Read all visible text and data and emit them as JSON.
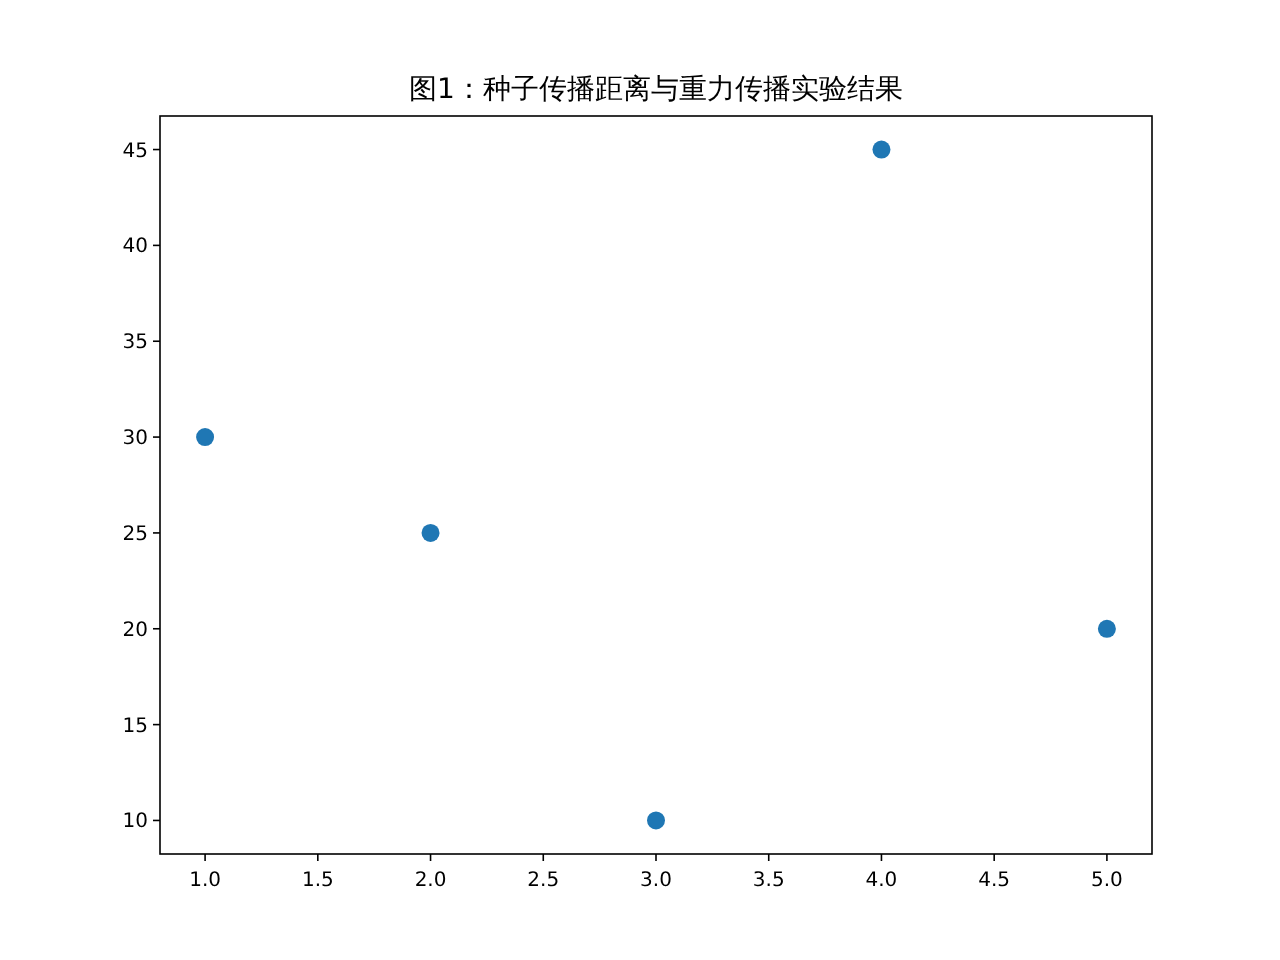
{
  "chart_data": {
    "type": "scatter",
    "title": "图1：种子传播距离与重力传播实验结果",
    "x": [
      1,
      2,
      3,
      4,
      5
    ],
    "values": [
      30,
      25,
      10,
      45,
      20
    ],
    "color": "#1f77b4",
    "marker": "circle",
    "grid": false,
    "xlim": [
      0.8,
      5.2
    ],
    "ylim": [
      8.25,
      46.75
    ],
    "xticks": [
      {
        "value": 1,
        "label": "1.0"
      },
      {
        "value": 1.5,
        "label": "1.5"
      },
      {
        "value": 2,
        "label": "2.0"
      },
      {
        "value": 2.5,
        "label": "2.5"
      },
      {
        "value": 3,
        "label": "3.0"
      },
      {
        "value": 3.5,
        "label": "3.5"
      },
      {
        "value": 4,
        "label": "4.0"
      },
      {
        "value": 4.5,
        "label": "4.5"
      },
      {
        "value": 5,
        "label": "5.0"
      }
    ],
    "yticks": [
      10,
      15,
      20,
      25,
      30,
      35,
      40,
      45
    ]
  }
}
